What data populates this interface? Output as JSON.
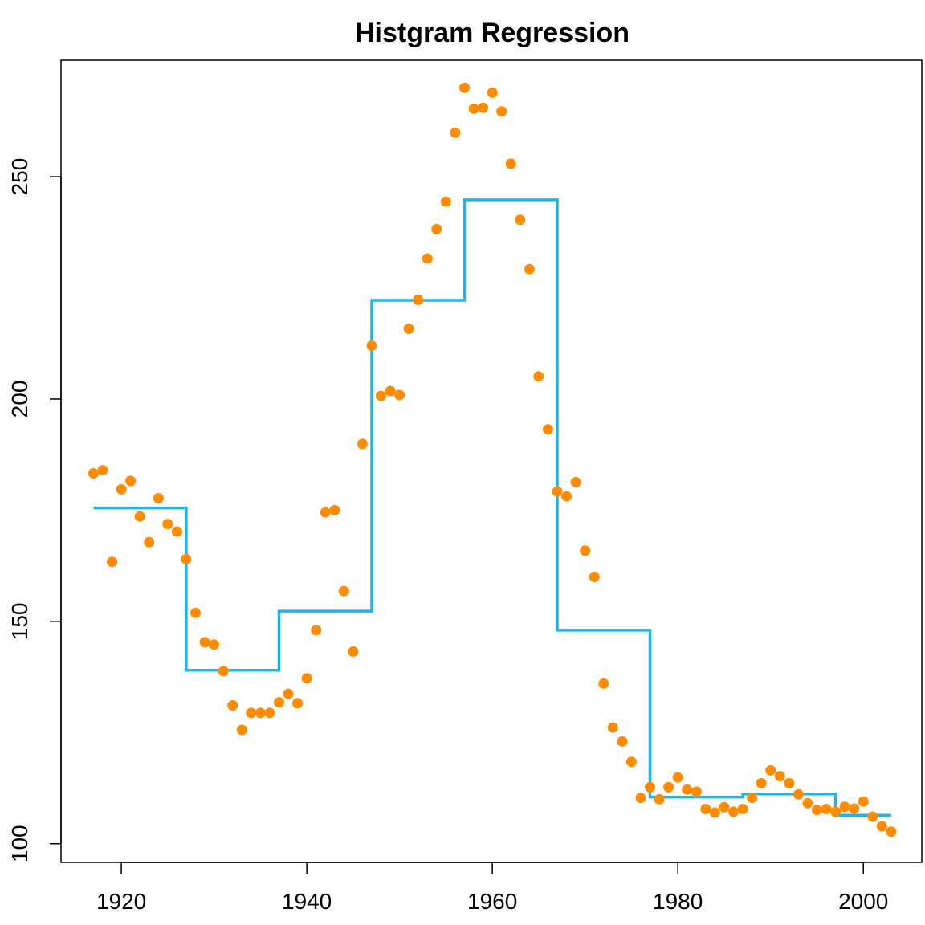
{
  "chart_data": {
    "type": "scatter",
    "title": "Histgram Regression",
    "xlabel": "",
    "ylabel": "",
    "xlim": [
      1913.5,
      2006.3
    ],
    "ylim": [
      95.8,
      276.2
    ],
    "x_ticks": [
      1920,
      1940,
      1960,
      1980,
      2000
    ],
    "y_ticks": [
      100,
      150,
      200,
      250
    ],
    "x_tick_labels": [
      "1920",
      "1940",
      "1960",
      "1980",
      "2000"
    ],
    "y_tick_labels": [
      "100",
      "150",
      "200",
      "250"
    ],
    "colors": {
      "points": "#FF8C00",
      "step": "#1EB4EC",
      "axis": "#000000"
    },
    "points": [
      [
        1917,
        183.3
      ],
      [
        1918,
        184.0
      ],
      [
        1919,
        163.4
      ],
      [
        1920,
        179.7
      ],
      [
        1921,
        181.6
      ],
      [
        1922,
        173.6
      ],
      [
        1923,
        167.8
      ],
      [
        1924,
        177.7
      ],
      [
        1925,
        171.9
      ],
      [
        1926,
        170.2
      ],
      [
        1927,
        164.0
      ],
      [
        1928,
        151.9
      ],
      [
        1929,
        145.3
      ],
      [
        1930,
        144.8
      ],
      [
        1931,
        138.8
      ],
      [
        1932,
        131.1
      ],
      [
        1933,
        125.6
      ],
      [
        1934,
        129.4
      ],
      [
        1935,
        129.4
      ],
      [
        1936,
        129.4
      ],
      [
        1937,
        131.8
      ],
      [
        1938,
        133.7
      ],
      [
        1939,
        131.6
      ],
      [
        1940,
        137.2
      ],
      [
        1941,
        148.0
      ],
      [
        1942,
        174.5
      ],
      [
        1943,
        175.0
      ],
      [
        1944,
        156.8
      ],
      [
        1945,
        143.2
      ],
      [
        1946,
        189.9
      ],
      [
        1947,
        212.0
      ],
      [
        1948,
        200.7
      ],
      [
        1949,
        201.8
      ],
      [
        1950,
        200.9
      ],
      [
        1951,
        215.8
      ],
      [
        1952,
        222.3
      ],
      [
        1953,
        231.6
      ],
      [
        1954,
        238.2
      ],
      [
        1955,
        244.4
      ],
      [
        1956,
        259.9
      ],
      [
        1957,
        270.0
      ],
      [
        1958,
        265.3
      ],
      [
        1959,
        265.5
      ],
      [
        1960,
        268.9
      ],
      [
        1961,
        264.7
      ],
      [
        1962,
        252.9
      ],
      [
        1963,
        240.3
      ],
      [
        1964,
        229.2
      ],
      [
        1965,
        205.1
      ],
      [
        1966,
        193.2
      ],
      [
        1967,
        179.2
      ],
      [
        1968,
        178.1
      ],
      [
        1969,
        181.3
      ],
      [
        1970,
        165.9
      ],
      [
        1971,
        160.0
      ],
      [
        1972,
        136.0
      ],
      [
        1973,
        126.1
      ],
      [
        1974,
        123.0
      ],
      [
        1975,
        118.4
      ],
      [
        1976,
        110.3
      ],
      [
        1977,
        112.7
      ],
      [
        1978,
        110.0
      ],
      [
        1979,
        112.7
      ],
      [
        1980,
        114.9
      ],
      [
        1981,
        112.2
      ],
      [
        1982,
        111.7
      ],
      [
        1983,
        107.8
      ],
      [
        1984,
        107.0
      ],
      [
        1985,
        108.2
      ],
      [
        1986,
        107.2
      ],
      [
        1987,
        107.8
      ],
      [
        1988,
        110.3
      ],
      [
        1989,
        113.6
      ],
      [
        1990,
        116.5
      ],
      [
        1991,
        115.2
      ],
      [
        1992,
        113.6
      ],
      [
        1993,
        111.1
      ],
      [
        1994,
        109.1
      ],
      [
        1995,
        107.6
      ],
      [
        1996,
        107.8
      ],
      [
        1997,
        107.2
      ],
      [
        1998,
        108.3
      ],
      [
        1999,
        107.9
      ],
      [
        2000,
        109.5
      ],
      [
        2001,
        106.1
      ],
      [
        2002,
        103.9
      ],
      [
        2003,
        102.7
      ]
    ],
    "step_line": [
      [
        1917,
        175.5
      ],
      [
        1927,
        175.5
      ],
      [
        1927,
        139.0
      ],
      [
        1937,
        139.0
      ],
      [
        1937,
        152.3
      ],
      [
        1947,
        152.3
      ],
      [
        1947,
        222.2
      ],
      [
        1957,
        222.2
      ],
      [
        1957,
        244.8
      ],
      [
        1967,
        244.8
      ],
      [
        1967,
        148.0
      ],
      [
        1977,
        148.0
      ],
      [
        1977,
        110.5
      ],
      [
        1987,
        110.5
      ],
      [
        1987,
        111.2
      ],
      [
        1997,
        111.2
      ],
      [
        1997,
        106.4
      ],
      [
        2003,
        106.4
      ]
    ]
  }
}
